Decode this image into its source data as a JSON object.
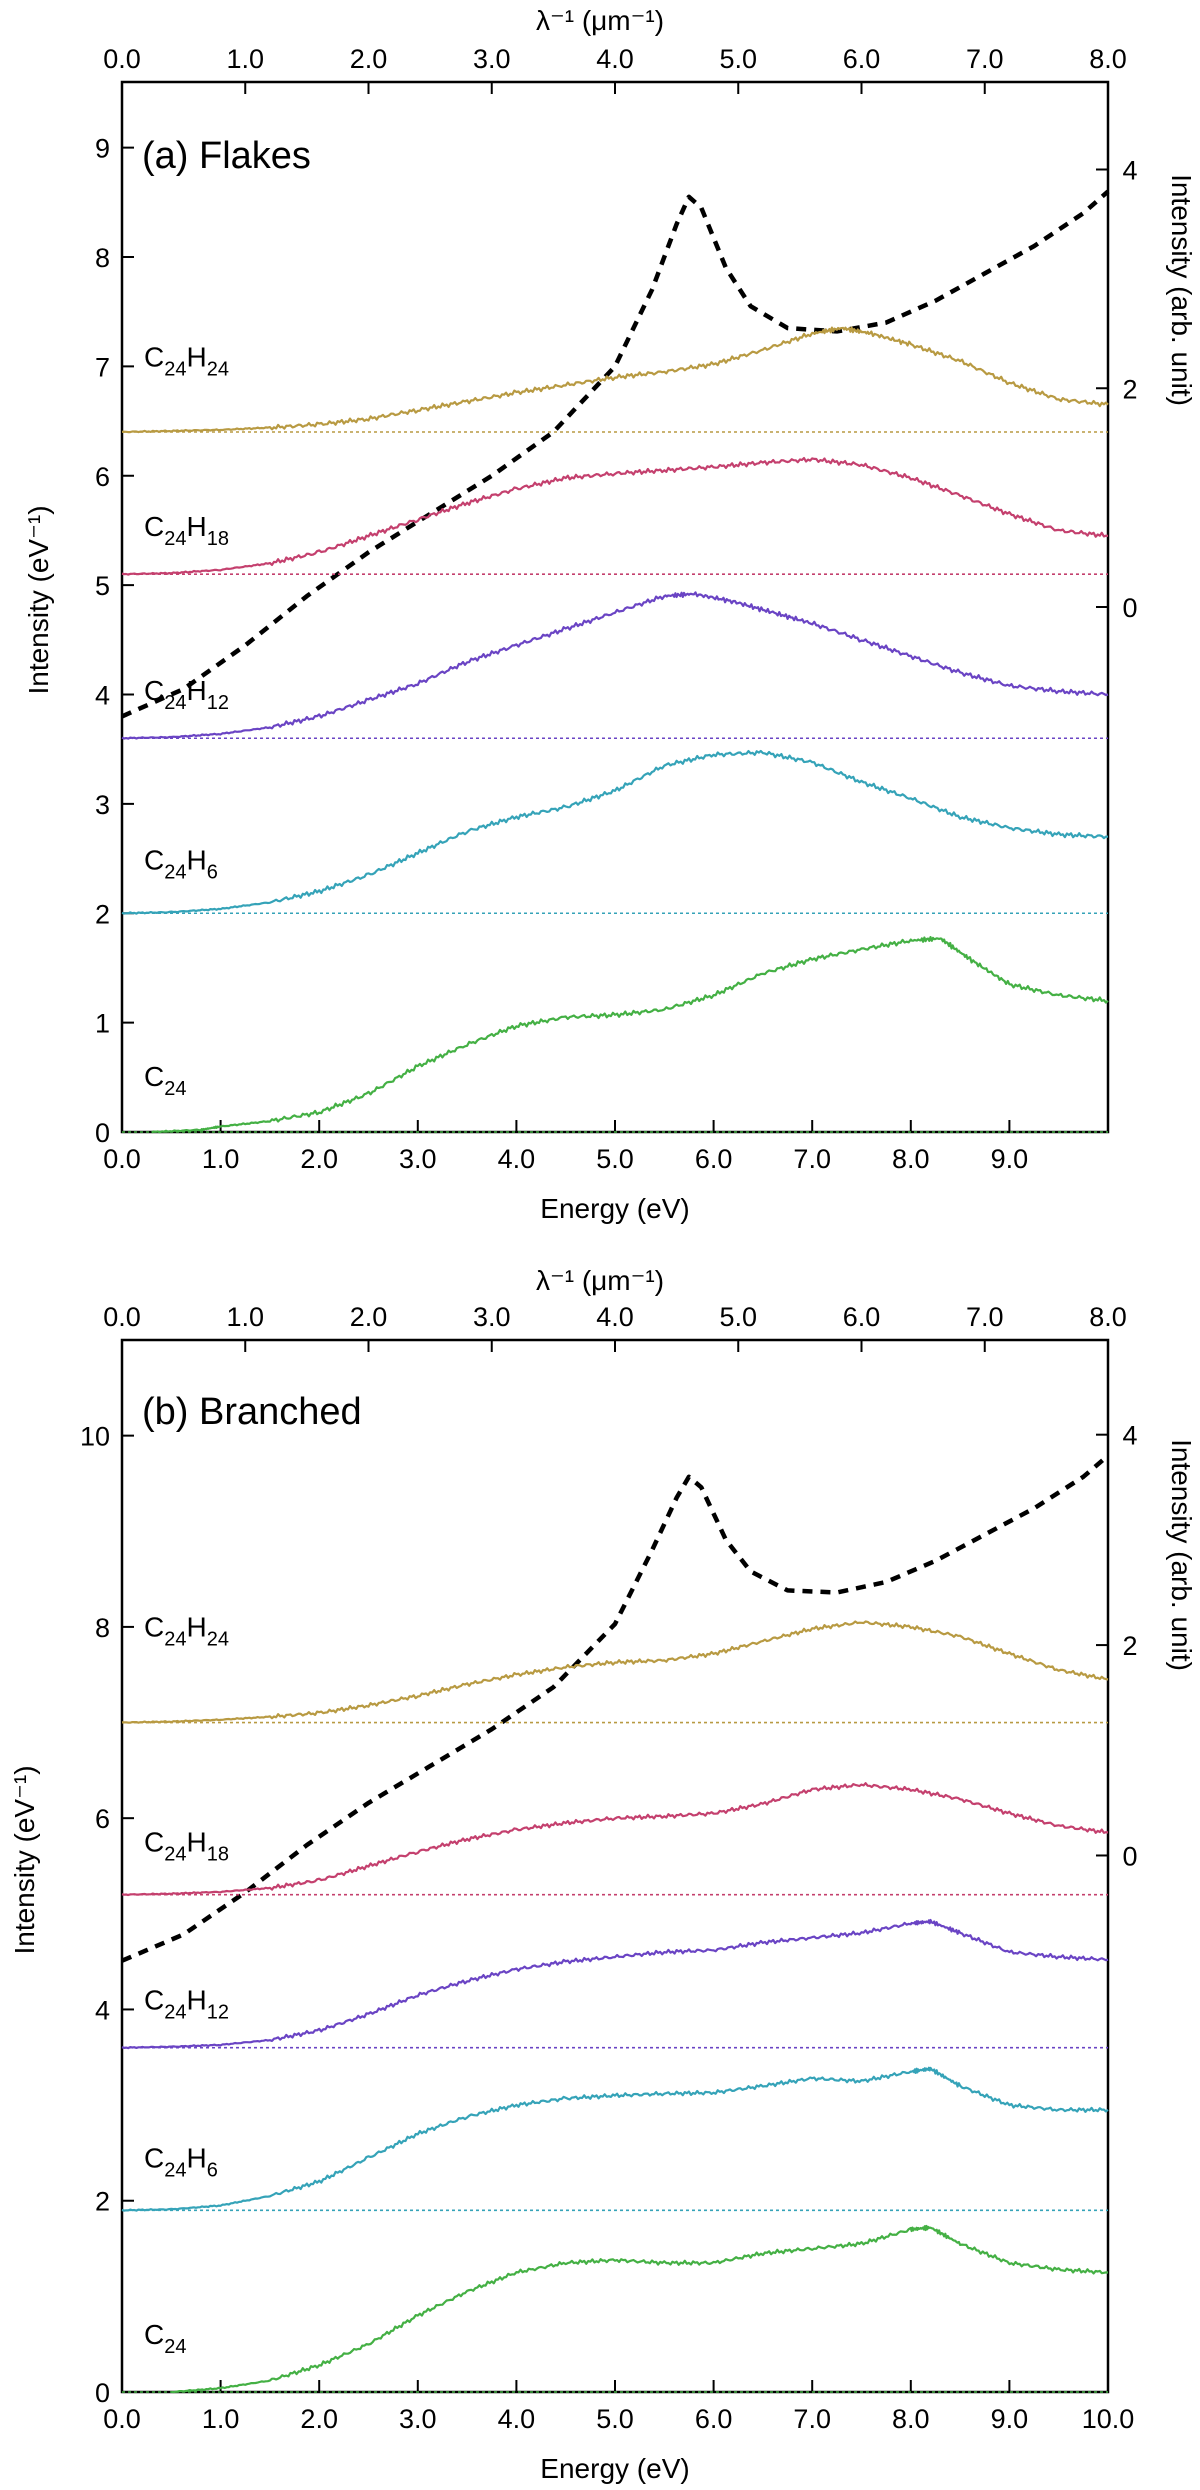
{
  "chart_data": [
    {
      "type": "line",
      "title": "(a) Flakes",
      "xlabel": "Energy (eV)",
      "ylabel": "Intensity (eV⁻¹)",
      "top_xlabel": "λ⁻¹ (μm⁻¹)",
      "right_ylabel": "Intensity (arb. unit)",
      "xlim": [
        0,
        10
      ],
      "ylim": [
        0,
        9.6
      ],
      "top_xlim": [
        0,
        8.0
      ],
      "right_ylim": [
        -4.8,
        4.8
      ],
      "x_ticks": [
        "0.0",
        "1.0",
        "2.0",
        "3.0",
        "4.0",
        "5.0",
        "6.0",
        "7.0",
        "8.0",
        "9.0"
      ],
      "y_ticks": [
        "0",
        "1",
        "2",
        "3",
        "4",
        "5",
        "6",
        "7",
        "8",
        "9"
      ],
      "top_ticks": [
        "0.0",
        "1.0",
        "2.0",
        "3.0",
        "4.0",
        "5.0",
        "6.0",
        "7.0",
        "8.0"
      ],
      "right_ticks": [
        "0",
        "2",
        "4"
      ],
      "grid": false,
      "series": [
        {
          "name": "C24",
          "label_main": "C",
          "label_sub": "24",
          "label_main2": "",
          "label_sub2": "",
          "color": "#44b044",
          "baseline": 0.0,
          "label_y": 0.42,
          "x": [
            0.3,
            0.8,
            1.0,
            1.5,
            2.0,
            2.5,
            3.0,
            3.5,
            4.0,
            4.5,
            5.0,
            5.5,
            6.0,
            6.5,
            7.0,
            7.5,
            8.0,
            8.3,
            8.6,
            9.0,
            9.5,
            10.0
          ],
          "y": [
            0.0,
            0.02,
            0.05,
            0.1,
            0.18,
            0.35,
            0.6,
            0.8,
            0.97,
            1.05,
            1.07,
            1.12,
            1.25,
            1.45,
            1.58,
            1.67,
            1.75,
            1.77,
            1.58,
            1.35,
            1.25,
            1.2
          ]
        },
        {
          "name": "C24H6",
          "label_main": "C",
          "label_sub": "24",
          "label_main2": "H",
          "label_sub2": "6",
          "color": "#35a3b8",
          "baseline": 2.0,
          "label_y": 2.4,
          "x": [
            0.0,
            0.5,
            1.0,
            1.5,
            2.0,
            2.5,
            3.0,
            3.5,
            4.0,
            4.5,
            5.0,
            5.5,
            6.0,
            6.5,
            7.0,
            7.5,
            8.0,
            8.5,
            9.0,
            9.5,
            10.0
          ],
          "y": [
            2.0,
            2.01,
            2.04,
            2.1,
            2.2,
            2.35,
            2.55,
            2.75,
            2.88,
            2.97,
            3.12,
            3.35,
            3.45,
            3.47,
            3.38,
            3.2,
            3.05,
            2.88,
            2.78,
            2.72,
            2.7
          ]
        },
        {
          "name": "C24H12",
          "label_main": "C",
          "label_sub": "24",
          "label_main2": "H",
          "label_sub2": "12",
          "color": "#6a44c4",
          "baseline": 3.6,
          "label_y": 3.95,
          "x": [
            0.0,
            0.5,
            1.0,
            1.5,
            2.0,
            2.5,
            3.0,
            3.5,
            4.0,
            4.5,
            5.0,
            5.5,
            5.8,
            6.2,
            6.6,
            7.0,
            7.5,
            8.0,
            8.5,
            9.0,
            9.5,
            10.0
          ],
          "y": [
            3.6,
            3.61,
            3.64,
            3.7,
            3.8,
            3.95,
            4.1,
            4.3,
            4.45,
            4.6,
            4.75,
            4.9,
            4.92,
            4.85,
            4.75,
            4.65,
            4.5,
            4.35,
            4.2,
            4.08,
            4.03,
            4.0
          ]
        },
        {
          "name": "C24H18",
          "label_main": "C",
          "label_sub": "24",
          "label_main2": "H",
          "label_sub2": "18",
          "color": "#c4406e",
          "baseline": 5.1,
          "label_y": 5.45,
          "x": [
            0.0,
            0.5,
            1.0,
            1.5,
            2.0,
            2.5,
            3.0,
            3.5,
            4.0,
            4.5,
            5.0,
            5.5,
            6.0,
            6.5,
            7.0,
            7.5,
            8.0,
            8.5,
            9.0,
            9.5,
            10.0
          ],
          "y": [
            5.1,
            5.11,
            5.14,
            5.2,
            5.3,
            5.45,
            5.6,
            5.75,
            5.88,
            5.98,
            6.02,
            6.05,
            6.08,
            6.12,
            6.15,
            6.1,
            5.98,
            5.82,
            5.65,
            5.5,
            5.45
          ]
        },
        {
          "name": "C24H24",
          "label_main": "C",
          "label_sub": "24",
          "label_main2": "H",
          "label_sub2": "24",
          "color": "#b89a42",
          "baseline": 6.4,
          "label_y": 7.0,
          "x": [
            0.0,
            0.5,
            1.0,
            1.5,
            2.0,
            2.5,
            3.0,
            3.5,
            4.0,
            4.5,
            5.0,
            5.5,
            6.0,
            6.5,
            7.0,
            7.3,
            7.6,
            8.0,
            8.5,
            9.0,
            9.5,
            10.0
          ],
          "y": [
            6.4,
            6.41,
            6.42,
            6.44,
            6.47,
            6.52,
            6.6,
            6.68,
            6.76,
            6.83,
            6.9,
            6.95,
            7.02,
            7.15,
            7.3,
            7.35,
            7.3,
            7.2,
            7.05,
            6.85,
            6.7,
            6.65
          ]
        }
      ],
      "reference_curve": {
        "name": "extinction curve",
        "axis": "top-right",
        "style": "dashed",
        "color": "#000000",
        "x": [
          0.0,
          0.5,
          1.0,
          1.5,
          2.0,
          2.5,
          3.0,
          3.5,
          4.0,
          4.3,
          4.5,
          4.6,
          4.7,
          4.9,
          5.1,
          5.4,
          5.8,
          6.2,
          6.6,
          7.0,
          7.4,
          7.8,
          8.0
        ],
        "y": [
          -1.0,
          -0.75,
          -0.35,
          0.1,
          0.5,
          0.85,
          1.2,
          1.6,
          2.2,
          2.9,
          3.5,
          3.75,
          3.65,
          3.1,
          2.75,
          2.55,
          2.52,
          2.6,
          2.8,
          3.05,
          3.3,
          3.6,
          3.8
        ]
      }
    },
    {
      "type": "line",
      "title": "(b) Branched",
      "xlabel": "Energy (eV)",
      "ylabel": "Intensity (eV⁻¹)",
      "top_xlabel": "λ⁻¹ (μm⁻¹)",
      "right_ylabel": "Intensity (arb. unit)",
      "xlim": [
        0,
        10
      ],
      "ylim": [
        0,
        11
      ],
      "top_xlim": [
        0,
        8.0
      ],
      "right_ylim": [
        -5.1,
        4.9
      ],
      "x_ticks": [
        "0.0",
        "1.0",
        "2.0",
        "3.0",
        "4.0",
        "5.0",
        "6.0",
        "7.0",
        "8.0",
        "9.0",
        "10.0"
      ],
      "y_ticks": [
        "0",
        "2",
        "4",
        "6",
        "8",
        "10"
      ],
      "top_ticks": [
        "0.0",
        "1.0",
        "2.0",
        "3.0",
        "4.0",
        "5.0",
        "6.0",
        "7.0",
        "8.0"
      ],
      "right_ticks": [
        "0",
        "2",
        "4"
      ],
      "grid": false,
      "series": [
        {
          "name": "C24",
          "label_main": "C",
          "label_sub": "24",
          "label_main2": "",
          "label_sub2": "",
          "color": "#44b044",
          "baseline": 0.0,
          "label_y": 0.5,
          "x": [
            0.5,
            1.0,
            1.5,
            2.0,
            2.5,
            3.0,
            3.5,
            4.0,
            4.5,
            5.0,
            5.5,
            6.0,
            6.5,
            7.0,
            7.5,
            8.0,
            8.2,
            8.5,
            9.0,
            9.5,
            10.0
          ],
          "y": [
            0.0,
            0.04,
            0.12,
            0.28,
            0.5,
            0.8,
            1.05,
            1.25,
            1.35,
            1.38,
            1.35,
            1.35,
            1.45,
            1.5,
            1.55,
            1.7,
            1.72,
            1.55,
            1.35,
            1.28,
            1.25
          ]
        },
        {
          "name": "C24H6",
          "label_main": "C",
          "label_sub": "24",
          "label_main2": "H",
          "label_sub2": "6",
          "color": "#35a3b8",
          "baseline": 1.9,
          "label_y": 2.35,
          "x": [
            0.0,
            0.5,
            1.0,
            1.5,
            2.0,
            2.5,
            3.0,
            3.5,
            4.0,
            4.5,
            5.0,
            5.5,
            6.0,
            6.5,
            7.0,
            7.5,
            8.0,
            8.2,
            8.5,
            9.0,
            9.5,
            10.0
          ],
          "y": [
            1.9,
            1.91,
            1.95,
            2.05,
            2.2,
            2.45,
            2.7,
            2.88,
            3.0,
            3.07,
            3.1,
            3.12,
            3.13,
            3.2,
            3.28,
            3.25,
            3.35,
            3.38,
            3.2,
            3.0,
            2.95,
            2.95
          ]
        },
        {
          "name": "C24H12",
          "label_main": "C",
          "label_sub": "24",
          "label_main2": "H",
          "label_sub2": "12",
          "color": "#6a44c4",
          "baseline": 3.6,
          "label_y": 4.0,
          "x": [
            0.0,
            0.5,
            1.0,
            1.5,
            2.0,
            2.5,
            3.0,
            3.5,
            4.0,
            4.5,
            5.0,
            5.5,
            6.0,
            6.5,
            7.0,
            7.5,
            8.0,
            8.2,
            8.5,
            9.0,
            9.5,
            10.0
          ],
          "y": [
            3.6,
            3.61,
            3.63,
            3.68,
            3.78,
            3.95,
            4.15,
            4.3,
            4.42,
            4.5,
            4.55,
            4.6,
            4.62,
            4.7,
            4.75,
            4.8,
            4.9,
            4.92,
            4.8,
            4.6,
            4.55,
            4.52
          ]
        },
        {
          "name": "C24H18",
          "label_main": "C",
          "label_sub": "24",
          "label_main2": "H",
          "label_sub2": "18",
          "color": "#c4406e",
          "baseline": 5.2,
          "label_y": 5.65,
          "x": [
            0.0,
            0.5,
            1.0,
            1.5,
            2.0,
            2.5,
            3.0,
            3.5,
            4.0,
            4.5,
            5.0,
            5.5,
            6.0,
            6.5,
            7.0,
            7.5,
            8.0,
            8.5,
            9.0,
            9.5,
            10.0
          ],
          "y": [
            5.2,
            5.21,
            5.23,
            5.27,
            5.35,
            5.5,
            5.65,
            5.78,
            5.88,
            5.95,
            6.0,
            6.02,
            6.05,
            6.15,
            6.3,
            6.35,
            6.3,
            6.2,
            6.05,
            5.92,
            5.85
          ]
        },
        {
          "name": "C24H24",
          "label_main": "C",
          "label_sub": "24",
          "label_main2": "H",
          "label_sub2": "24",
          "color": "#b89a42",
          "baseline": 7.0,
          "label_y": 7.9,
          "x": [
            0.0,
            0.5,
            1.0,
            1.5,
            2.0,
            2.5,
            3.0,
            3.5,
            4.0,
            4.5,
            5.0,
            5.5,
            6.0,
            6.5,
            7.0,
            7.5,
            8.0,
            8.5,
            9.0,
            9.5,
            10.0
          ],
          "y": [
            7.0,
            7.01,
            7.03,
            7.06,
            7.1,
            7.18,
            7.28,
            7.4,
            7.5,
            7.58,
            7.63,
            7.65,
            7.72,
            7.85,
            7.98,
            8.05,
            8.0,
            7.9,
            7.72,
            7.55,
            7.45
          ]
        }
      ],
      "reference_curve": {
        "name": "extinction curve",
        "axis": "top-right",
        "style": "dashed",
        "color": "#000000",
        "x": [
          0.0,
          0.5,
          1.0,
          1.5,
          2.0,
          2.5,
          3.0,
          3.5,
          4.0,
          4.3,
          4.5,
          4.6,
          4.7,
          4.9,
          5.1,
          5.4,
          5.8,
          6.2,
          6.6,
          7.0,
          7.4,
          7.8,
          8.0
        ],
        "y": [
          -1.0,
          -0.75,
          -0.35,
          0.1,
          0.5,
          0.85,
          1.2,
          1.6,
          2.2,
          2.9,
          3.4,
          3.6,
          3.5,
          3.0,
          2.7,
          2.52,
          2.5,
          2.6,
          2.8,
          3.05,
          3.3,
          3.6,
          3.8
        ]
      }
    }
  ]
}
